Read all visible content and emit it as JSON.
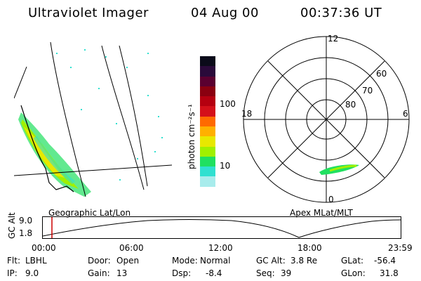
{
  "header": {
    "instrument": "Ultraviolet Imager",
    "date": "04 Aug 00",
    "time": "00:37:36 UT"
  },
  "geo_panel": {
    "label": "Geographic Lat/Lon"
  },
  "colorbar": {
    "label": "photon cm⁻²s⁻¹",
    "ticks": [
      "100",
      "10"
    ],
    "colors": [
      "#0b0b1a",
      "#2a0a3a",
      "#5a0030",
      "#8a0010",
      "#b50010",
      "#d4101a",
      "#ff6a00",
      "#ffb000",
      "#e8e800",
      "#a0f000",
      "#20e060",
      "#30e0d0",
      "#a8ecec",
      "#ffffff"
    ]
  },
  "polar_panel": {
    "label": "Apex MLat/MLT",
    "mlt_labels": {
      "top": "12",
      "left": "18",
      "right": "6",
      "bottom": "0"
    },
    "lat_labels": [
      "60",
      "70",
      "80"
    ]
  },
  "timeline": {
    "axis_label": "GC Alt",
    "y_ticks": [
      "9.0",
      "1.8"
    ],
    "x_ticks": [
      "00:00",
      "06:00",
      "12:00",
      "18:00",
      "23:59"
    ],
    "marker_color": "#cc0000"
  },
  "info": {
    "filter_label": "Flt:",
    "filter_value": "LBHL",
    "ip_label": "IP:",
    "ip_value": "9.0",
    "door_label": "Door:",
    "door_value": "Open",
    "gain_label": "Gain:",
    "gain_value": "13",
    "mode_label": "Mode:",
    "mode_value": "Normal",
    "dsp_label": "Dsp:",
    "dsp_value": "-8.4",
    "gcalt_label": "GC Alt:",
    "gcalt_value": "3.8 Re",
    "seq_label": "Seq:",
    "seq_value": "39",
    "glat_label": "GLat:",
    "glat_value": "-56.4",
    "glon_label": "GLon:",
    "glon_value": "31.8"
  }
}
